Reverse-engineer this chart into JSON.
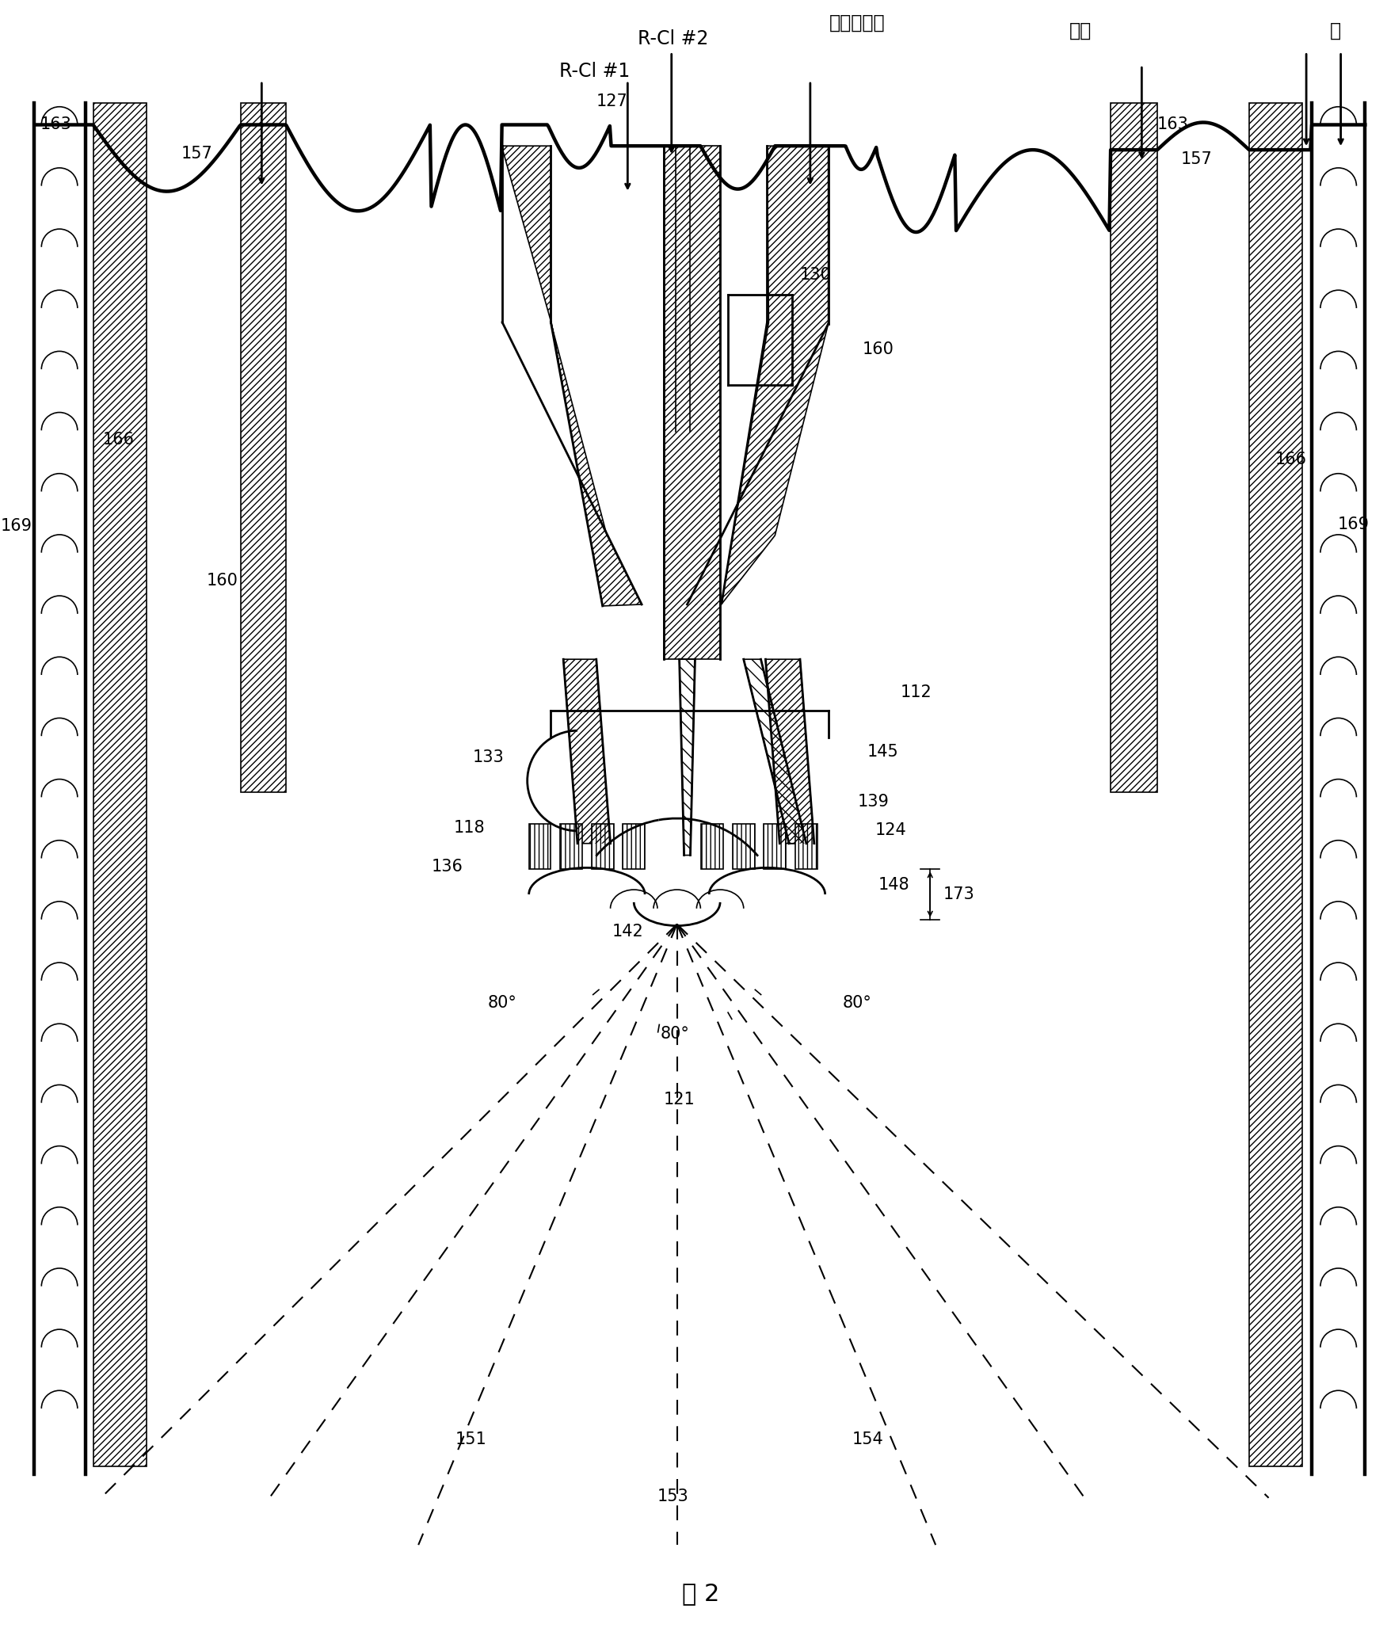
{
  "bg_color": "#ffffff",
  "lc": "#000000",
  "labels_top": {
    "water": "水",
    "oxygen": "氧气",
    "moderator": "缓和剂气体",
    "RCl2": "R-Cl #2",
    "RCl1": "R-Cl #1"
  },
  "fig_label": "图 2"
}
